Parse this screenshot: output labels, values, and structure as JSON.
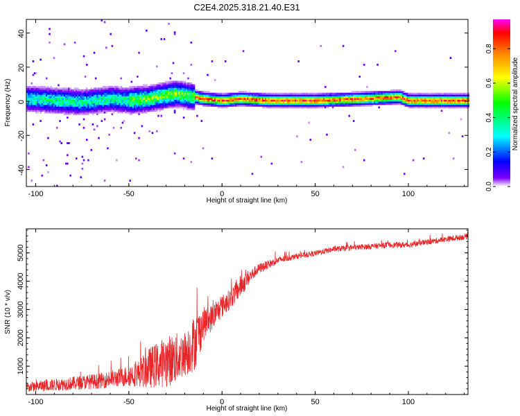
{
  "title": "C2E4.2025.318.21.40.E31",
  "chart_data": [
    {
      "type": "heatmap",
      "xlabel": "Height of straight line (km)",
      "ylabel": "Frequency (Hz)",
      "xlim": [
        -105,
        132
      ],
      "ylim": [
        -50,
        48
      ],
      "xticks": [
        -100,
        -50,
        0,
        50,
        100
      ],
      "yticks": [
        -40,
        -20,
        0,
        20,
        40
      ],
      "xtick_labels": [
        "-100",
        "-50",
        "0",
        "50",
        "100"
      ],
      "ytick_labels": [
        "-40",
        "-20",
        "0",
        "20",
        "40"
      ],
      "colorbar": {
        "label": "Normalized spectral amplitude",
        "range": [
          0,
          0.97
        ],
        "ticks": [
          0.0,
          0.2,
          0.4,
          0.6,
          0.8
        ],
        "tick_labels": [
          "0.0",
          "0.2",
          "0.4",
          "0.6",
          "0.8"
        ],
        "colormap": [
          "#ffffff",
          "#7f00ff",
          "#0000ff",
          "#00ffff",
          "#00ff00",
          "#ffff00",
          "#ff8000",
          "#ff0000",
          "#ff00ff"
        ]
      },
      "ridge": {
        "x": [
          -105,
          -90,
          -75,
          -60,
          -50,
          -40,
          -30,
          -25,
          -20,
          -15,
          -10,
          0,
          10,
          25,
          50,
          75,
          95,
          100,
          110,
          132
        ],
        "center_freq": [
          1,
          0,
          -1,
          1,
          0,
          1,
          3,
          4,
          3,
          2,
          1,
          0,
          1,
          0,
          0,
          1,
          2,
          0,
          0,
          0
        ]
      }
    },
    {
      "type": "line",
      "xlabel": "Height of straight line (km)",
      "ylabel": "SNR (10 * v/v)",
      "xlim": [
        -105,
        132
      ],
      "ylim": [
        0,
        5850
      ],
      "xticks": [
        -100,
        -50,
        0,
        50,
        100
      ],
      "yticks": [
        1000,
        2000,
        3000,
        4000,
        5000
      ],
      "xtick_labels": [
        "-100",
        "-50",
        "0",
        "50",
        "100"
      ],
      "ytick_labels": [
        "1000",
        "2000",
        "3000",
        "4000",
        "5000"
      ],
      "line_color": "#e8262a",
      "envelope": {
        "x": [
          -105,
          -95,
          -85,
          -75,
          -65,
          -55,
          -45,
          -40,
          -35,
          -30,
          -25,
          -20,
          -15,
          -13,
          -10,
          -5,
          0,
          5,
          10,
          15,
          20,
          30,
          40,
          50,
          60,
          70,
          80,
          90,
          100,
          110,
          120,
          132
        ],
        "base": [
          200,
          250,
          300,
          350,
          400,
          500,
          600,
          700,
          800,
          900,
          1000,
          1200,
          1500,
          1800,
          2300,
          2600,
          3000,
          3300,
          3700,
          4100,
          4400,
          4700,
          4850,
          4950,
          5100,
          5150,
          5200,
          5250,
          5250,
          5350,
          5450,
          5550
        ],
        "amp": [
          350,
          400,
          450,
          500,
          550,
          650,
          900,
          1400,
          1600,
          1800,
          1800,
          1600,
          2000,
          1800,
          1200,
          900,
          800,
          700,
          800,
          500,
          350,
          250,
          200,
          200,
          200,
          200,
          200,
          200,
          200,
          200,
          200,
          200
        ]
      }
    }
  ]
}
